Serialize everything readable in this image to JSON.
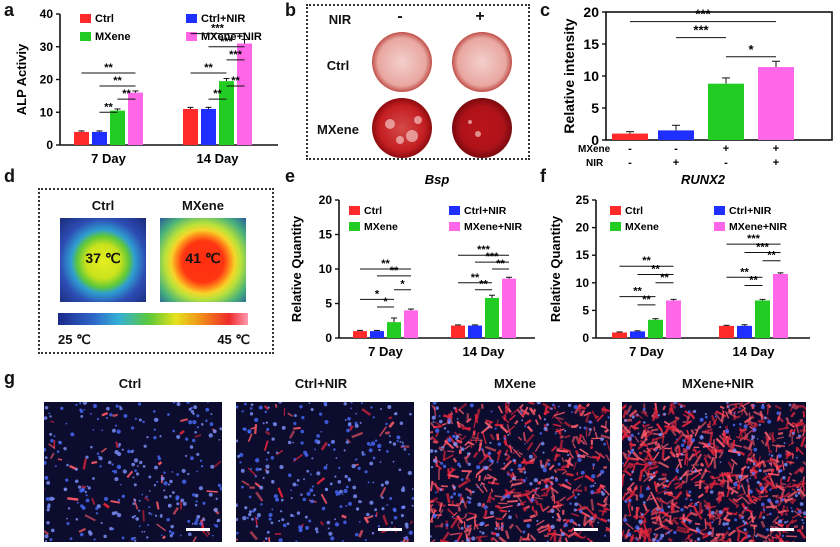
{
  "panel_letters": {
    "a": "a",
    "b": "b",
    "c": "c",
    "d": "d",
    "e": "e",
    "f": "f",
    "g": "g"
  },
  "colors": {
    "ctrl": "#ff2a2a",
    "ctrl_nir": "#1f2fff",
    "mxene": "#22cc22",
    "mxene_nir": "#ff66e8"
  },
  "panel_b": {
    "nir_label": "NIR",
    "minus": "-",
    "plus": "+",
    "row1": "Ctrl",
    "row2": "MXene"
  },
  "panel_d": {
    "ctrl_label": "Ctrl",
    "mxene_label": "MXene",
    "ctrl_temp": "37 ℃",
    "mxene_temp": "41 ℃",
    "scale_min": "25 ℃",
    "scale_max": "45 ℃"
  },
  "panel_g": {
    "labels": [
      "Ctrl",
      "Ctrl+NIR",
      "MXene",
      "MXene+NIR"
    ],
    "red_density": [
      0.05,
      0.06,
      0.55,
      0.85
    ]
  },
  "chart_data": [
    {
      "id": "a",
      "type": "bar",
      "title": "",
      "ylabel": "ALP Activiy",
      "categories": [
        "7 Day",
        "14 Day"
      ],
      "ylim": [
        0,
        40
      ],
      "yticks": [
        0,
        10,
        20,
        30,
        40
      ],
      "series": [
        {
          "name": "Ctrl",
          "values": [
            4,
            11
          ],
          "errors": [
            0.3,
            0.5
          ]
        },
        {
          "name": "Ctrl+NIR",
          "values": [
            4,
            11
          ],
          "errors": [
            0.3,
            0.5
          ]
        },
        {
          "name": "MXene",
          "values": [
            10.5,
            19.5
          ],
          "errors": [
            0.5,
            0.8
          ]
        },
        {
          "name": "MXene+NIR",
          "values": [
            16,
            31
          ],
          "errors": [
            0.5,
            1.2
          ]
        }
      ],
      "significance": [
        {
          "group": 0,
          "from": 2,
          "to": 3,
          "y": 14,
          "label": "**"
        },
        {
          "group": 0,
          "from": 1,
          "to": 3,
          "y": 18,
          "label": "**"
        },
        {
          "group": 0,
          "from": 1,
          "to": 2,
          "y": 10,
          "label": "**"
        },
        {
          "group": 0,
          "from": 0,
          "to": 3,
          "y": 22,
          "label": "**"
        },
        {
          "group": 1,
          "from": 2,
          "to": 3,
          "y": 18,
          "label": "**"
        },
        {
          "group": 1,
          "from": 1,
          "to": 3,
          "y": 30,
          "label": "***"
        },
        {
          "group": 1,
          "from": 1,
          "to": 2,
          "y": 14,
          "label": "**"
        },
        {
          "group": 1,
          "from": 0,
          "to": 3,
          "y": 34,
          "label": "***"
        },
        {
          "group": 1,
          "from": 0,
          "to": 2,
          "y": 22,
          "label": "**"
        },
        {
          "group": 1,
          "from": 2,
          "to": 3,
          "y": 26,
          "label": "***"
        }
      ]
    },
    {
      "id": "c",
      "type": "bar",
      "ylabel": "Relative intensity",
      "ylim": [
        0,
        20
      ],
      "yticks": [
        0,
        5,
        10,
        15,
        20
      ],
      "values": [
        1,
        1.5,
        8.8,
        11.4
      ],
      "errors": [
        0.3,
        0.8,
        0.9,
        0.9
      ],
      "row_labels": {
        "mxene": "MXene",
        "nir": "NIR"
      },
      "mxene_signs": [
        "-",
        "-",
        "+",
        "+"
      ],
      "nir_signs": [
        "-",
        "+",
        "-",
        "+"
      ],
      "significance": [
        {
          "from": 2,
          "to": 3,
          "y": 13,
          "label": "*"
        },
        {
          "from": 1,
          "to": 2,
          "y": 16,
          "label": "***"
        },
        {
          "from": 0,
          "to": 3,
          "y": 18.5,
          "label": "***"
        }
      ]
    },
    {
      "id": "e",
      "type": "bar",
      "title": "Bsp",
      "ylabel": "Relative Quantity",
      "categories": [
        "7 Day",
        "14 Day"
      ],
      "ylim": [
        0,
        20
      ],
      "yticks": [
        0,
        5,
        10,
        15,
        20
      ],
      "series": [
        {
          "name": "Ctrl",
          "values": [
            1,
            1.8
          ],
          "errors": [
            0.1,
            0.1
          ]
        },
        {
          "name": "Ctrl+NIR",
          "values": [
            1,
            1.8
          ],
          "errors": [
            0.1,
            0.1
          ]
        },
        {
          "name": "MXene",
          "values": [
            2.3,
            5.8
          ],
          "errors": [
            0.6,
            0.4
          ]
        },
        {
          "name": "MXene+NIR",
          "values": [
            4,
            8.6
          ],
          "errors": [
            0.2,
            0.2
          ]
        }
      ],
      "significance": [
        {
          "group": 0,
          "from": 0,
          "to": 3,
          "y": 10,
          "label": "**"
        },
        {
          "group": 0,
          "from": 1,
          "to": 3,
          "y": 9,
          "label": "**"
        },
        {
          "group": 0,
          "from": 2,
          "to": 3,
          "y": 7,
          "label": "*"
        },
        {
          "group": 0,
          "from": 0,
          "to": 2,
          "y": 5.6,
          "label": "*"
        },
        {
          "group": 0,
          "from": 1,
          "to": 2,
          "y": 4.5,
          "label": "*"
        },
        {
          "group": 1,
          "from": 0,
          "to": 3,
          "y": 12,
          "label": "***"
        },
        {
          "group": 1,
          "from": 1,
          "to": 3,
          "y": 11,
          "label": "***"
        },
        {
          "group": 1,
          "from": 2,
          "to": 3,
          "y": 10,
          "label": "**"
        },
        {
          "group": 1,
          "from": 0,
          "to": 2,
          "y": 8,
          "label": "**"
        },
        {
          "group": 1,
          "from": 1,
          "to": 2,
          "y": 7,
          "label": "**"
        }
      ]
    },
    {
      "id": "f",
      "type": "bar",
      "title": "RUNX2",
      "ylabel": "Relative Quantity",
      "categories": [
        "7 Day",
        "14 Day"
      ],
      "ylim": [
        0,
        25
      ],
      "yticks": [
        0,
        5,
        10,
        15,
        20,
        25
      ],
      "series": [
        {
          "name": "Ctrl",
          "values": [
            1,
            2.2
          ],
          "errors": [
            0.1,
            0.1
          ]
        },
        {
          "name": "Ctrl+NIR",
          "values": [
            1.2,
            2.2
          ],
          "errors": [
            0.1,
            0.2
          ]
        },
        {
          "name": "MXene",
          "values": [
            3.3,
            6.8
          ],
          "errors": [
            0.2,
            0.2
          ]
        },
        {
          "name": "MXene+NIR",
          "values": [
            6.8,
            11.6
          ],
          "errors": [
            0.2,
            0.2
          ]
        }
      ],
      "significance": [
        {
          "group": 0,
          "from": 0,
          "to": 3,
          "y": 13,
          "label": "**"
        },
        {
          "group": 0,
          "from": 1,
          "to": 3,
          "y": 11.5,
          "label": "**"
        },
        {
          "group": 0,
          "from": 2,
          "to": 3,
          "y": 10,
          "label": "**"
        },
        {
          "group": 0,
          "from": 0,
          "to": 2,
          "y": 7.5,
          "label": "**"
        },
        {
          "group": 0,
          "from": 1,
          "to": 2,
          "y": 6,
          "label": "**"
        },
        {
          "group": 1,
          "from": 0,
          "to": 3,
          "y": 17,
          "label": "***"
        },
        {
          "group": 1,
          "from": 1,
          "to": 3,
          "y": 15.5,
          "label": "***"
        },
        {
          "group": 1,
          "from": 2,
          "to": 3,
          "y": 14,
          "label": "**"
        },
        {
          "group": 1,
          "from": 0,
          "to": 2,
          "y": 11,
          "label": "**"
        },
        {
          "group": 1,
          "from": 1,
          "to": 2,
          "y": 9.5,
          "label": "**"
        }
      ]
    }
  ]
}
